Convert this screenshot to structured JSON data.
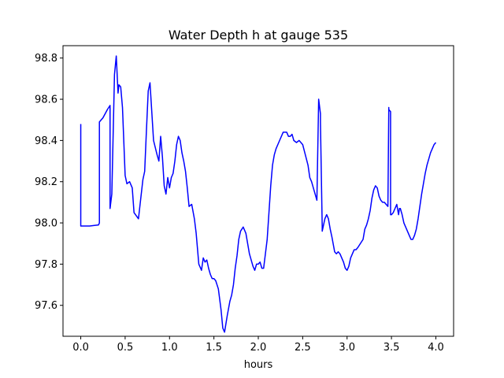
{
  "chart_data": {
    "type": "line",
    "title": "Water Depth h at gauge 535",
    "xlabel": "hours",
    "ylabel": "",
    "xlim": [
      -0.2,
      4.2
    ],
    "ylim": [
      97.45,
      98.86
    ],
    "xticks": [
      0.0,
      0.5,
      1.0,
      1.5,
      2.0,
      2.5,
      3.0,
      3.5,
      4.0
    ],
    "xtick_labels": [
      "0.0",
      "0.5",
      "1.0",
      "1.5",
      "2.0",
      "2.5",
      "3.0",
      "3.5",
      "4.0"
    ],
    "yticks": [
      97.6,
      97.8,
      98.0,
      98.2,
      98.4,
      98.6,
      98.8
    ],
    "ytick_labels": [
      "97.6",
      "97.8",
      "98.0",
      "98.2",
      "98.4",
      "98.6",
      "98.8"
    ],
    "grid": false,
    "legend": "none",
    "series": [
      {
        "color": "#0000ff",
        "x": [
          0.0,
          0.0,
          0.1,
          0.2,
          0.21,
          0.21,
          0.25,
          0.3,
          0.33,
          0.33,
          0.35,
          0.38,
          0.4,
          0.42,
          0.43,
          0.45,
          0.47,
          0.5,
          0.52,
          0.55,
          0.58,
          0.6,
          0.65,
          0.7,
          0.72,
          0.74,
          0.76,
          0.78,
          0.82,
          0.86,
          0.88,
          0.9,
          0.92,
          0.94,
          0.96,
          0.98,
          1.0,
          1.02,
          1.04,
          1.06,
          1.08,
          1.1,
          1.12,
          1.14,
          1.16,
          1.18,
          1.2,
          1.22,
          1.25,
          1.28,
          1.3,
          1.33,
          1.36,
          1.38,
          1.4,
          1.42,
          1.44,
          1.46,
          1.48,
          1.5,
          1.52,
          1.55,
          1.58,
          1.6,
          1.62,
          1.65,
          1.68,
          1.7,
          1.72,
          1.74,
          1.76,
          1.78,
          1.8,
          1.83,
          1.86,
          1.88,
          1.9,
          1.92,
          1.94,
          1.96,
          1.98,
          2.0,
          2.02,
          2.04,
          2.06,
          2.08,
          2.1,
          2.12,
          2.14,
          2.16,
          2.18,
          2.2,
          2.24,
          2.28,
          2.32,
          2.34,
          2.36,
          2.38,
          2.4,
          2.43,
          2.46,
          2.5,
          2.53,
          2.56,
          2.58,
          2.6,
          2.62,
          2.64,
          2.66,
          2.68,
          2.7,
          2.7,
          2.72,
          2.72,
          2.73,
          2.75,
          2.77,
          2.79,
          2.81,
          2.83,
          2.86,
          2.88,
          2.9,
          2.92,
          2.94,
          2.96,
          2.98,
          3.0,
          3.02,
          3.04,
          3.06,
          3.08,
          3.1,
          3.12,
          3.15,
          3.18,
          3.2,
          3.22,
          3.24,
          3.26,
          3.28,
          3.3,
          3.32,
          3.34,
          3.36,
          3.38,
          3.4,
          3.42,
          3.44,
          3.46,
          3.47,
          3.47,
          3.49,
          3.49,
          3.5,
          3.52,
          3.54,
          3.56,
          3.58,
          3.59,
          3.6,
          3.62,
          3.64,
          3.66,
          3.68,
          3.7,
          3.72,
          3.74,
          3.76,
          3.78,
          3.8,
          3.82,
          3.84,
          3.86,
          3.88,
          3.9,
          3.92,
          3.94,
          3.96,
          3.98,
          4.0
        ],
        "y": [
          98.48,
          97.985,
          97.985,
          97.99,
          98.0,
          98.49,
          98.51,
          98.55,
          98.57,
          98.07,
          98.14,
          98.72,
          98.81,
          98.63,
          98.67,
          98.66,
          98.56,
          98.23,
          98.19,
          98.2,
          98.17,
          98.05,
          98.02,
          98.21,
          98.25,
          98.45,
          98.64,
          98.68,
          98.4,
          98.33,
          98.3,
          98.42,
          98.32,
          98.18,
          98.14,
          98.22,
          98.17,
          98.22,
          98.24,
          98.3,
          98.38,
          98.42,
          98.4,
          98.34,
          98.3,
          98.25,
          98.17,
          98.08,
          98.09,
          98.02,
          97.95,
          97.8,
          97.77,
          97.83,
          97.81,
          97.82,
          97.78,
          97.75,
          97.73,
          97.73,
          97.72,
          97.68,
          97.58,
          97.49,
          97.47,
          97.55,
          97.62,
          97.65,
          97.7,
          97.78,
          97.84,
          97.92,
          97.96,
          97.98,
          97.95,
          97.9,
          97.85,
          97.82,
          97.79,
          97.77,
          97.8,
          97.8,
          97.81,
          97.78,
          97.78,
          97.85,
          97.92,
          98.05,
          98.18,
          98.28,
          98.33,
          98.36,
          98.4,
          98.44,
          98.44,
          98.42,
          98.42,
          98.43,
          98.4,
          98.39,
          98.4,
          98.38,
          98.33,
          98.28,
          98.22,
          98.2,
          98.17,
          98.14,
          98.11,
          98.6,
          98.53,
          98.49,
          97.98,
          97.96,
          97.98,
          98.02,
          98.04,
          98.02,
          97.97,
          97.93,
          97.86,
          97.85,
          97.86,
          97.85,
          97.83,
          97.81,
          97.78,
          97.77,
          97.79,
          97.83,
          97.85,
          97.87,
          97.87,
          97.88,
          97.9,
          97.92,
          97.97,
          97.99,
          98.02,
          98.06,
          98.12,
          98.16,
          98.18,
          98.17,
          98.13,
          98.11,
          98.1,
          98.1,
          98.09,
          98.08,
          98.56,
          98.55,
          98.54,
          98.04,
          98.04,
          98.05,
          98.07,
          98.09,
          98.04,
          98.07,
          98.07,
          98.04,
          98.0,
          97.98,
          97.96,
          97.94,
          97.92,
          97.92,
          97.94,
          97.97,
          98.02,
          98.08,
          98.14,
          98.19,
          98.24,
          98.28,
          98.31,
          98.34,
          98.36,
          98.38,
          98.39
        ]
      }
    ]
  }
}
